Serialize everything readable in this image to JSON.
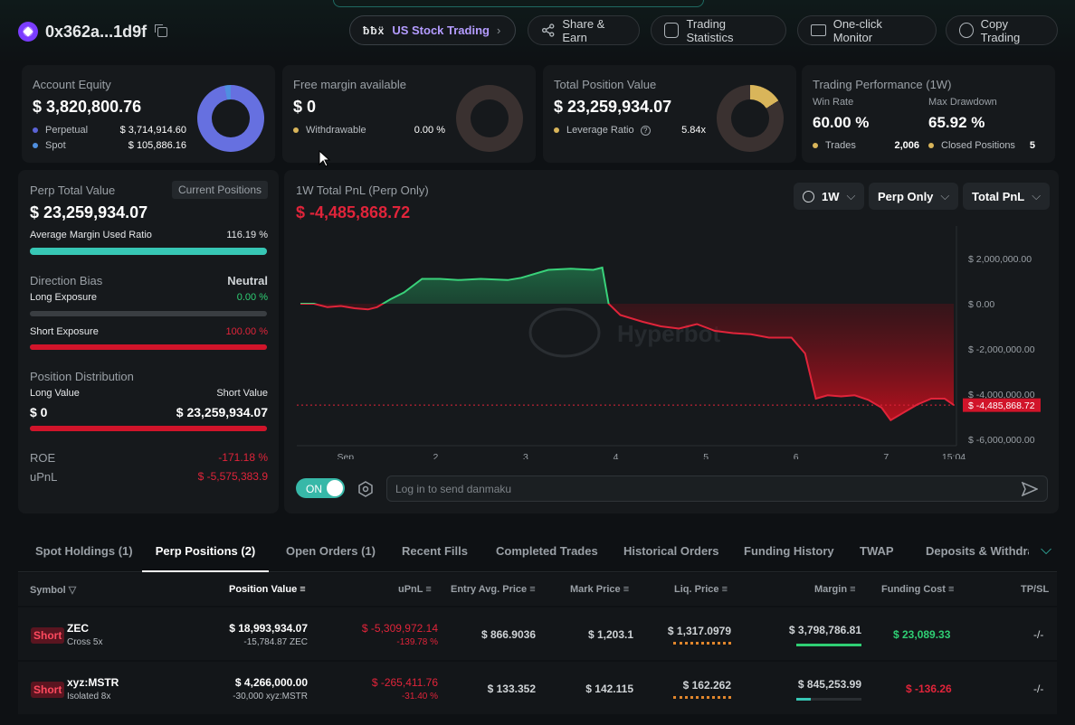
{
  "header": {
    "address": "0x362a...1d9f",
    "buttons": {
      "us_logo": "ƀƀẍ",
      "us_stock": "US Stock Trading",
      "share": "Share & Earn",
      "stats": "Trading Statistics",
      "monitor": "One-click Monitor",
      "copy": "Copy Trading"
    }
  },
  "account_equity": {
    "label": "Account Equity",
    "value": "$ 3,820,800.76",
    "perpetual_label": "Perpetual",
    "perpetual_value": "$ 3,714,914.60",
    "spot_label": "Spot",
    "spot_value": "$ 105,886.16",
    "perpetual_color": "#5b63d6",
    "spot_color": "#4f8fe0"
  },
  "free_margin": {
    "label": "Free margin available",
    "value": "$ 0",
    "withdrawable_label": "Withdrawable",
    "withdrawable_value": "0.00 %"
  },
  "total_position": {
    "label": "Total Position Value",
    "value": "$ 23,259,934.07",
    "leverage_label": "Leverage Ratio",
    "leverage_value": "5.84x"
  },
  "performance": {
    "label": "Trading Performance (1W)",
    "win_rate_label": "Win Rate",
    "win_rate_value": "60.00 %",
    "max_dd_label": "Max Drawdown",
    "max_dd_value": "65.92 %",
    "trades_label": "Trades",
    "trades_value": "2,006",
    "closed_label": "Closed Positions",
    "closed_value": "5"
  },
  "perp_panel": {
    "label": "Perp Total Value",
    "current_positions": "Current Positions",
    "value": "$ 23,259,934.07",
    "margin_ratio_label": "Average Margin Used Ratio",
    "margin_ratio_value": "116.19 %",
    "margin_ratio_fill": 1.0,
    "direction_bias_label": "Direction Bias",
    "direction_bias_value": "Neutral",
    "long_exposure_label": "Long Exposure",
    "long_exposure_value": "0.00 %",
    "long_exposure_fill": 0.0,
    "short_exposure_label": "Short Exposure",
    "short_exposure_value": "100.00 %",
    "short_exposure_fill": 1.0,
    "distribution_label": "Position Distribution",
    "long_value_label": "Long Value",
    "long_value": "$ 0",
    "short_value_label": "Short Value",
    "short_value": "$ 23,259,934.07",
    "short_value_fill": 1.0,
    "roe_label": "ROE",
    "roe_value": "-171.18 %",
    "upnl_label": "uPnL",
    "upnl_value": "$ -5,575,383.9"
  },
  "chart_panel": {
    "title": "1W Total PnL (Perp Only)",
    "value": "$ -4,485,868.72",
    "range_btn": "1W",
    "scope_btn": "Perp Only",
    "metric_btn": "Total PnL",
    "watermark": "Hyperbot",
    "danmaku_toggle": "ON",
    "danmaku_placeholder": "Log in to send danmaku"
  },
  "chart_data": {
    "type": "area",
    "ylim": [
      -6000000,
      3000000
    ],
    "y_ticks": [
      {
        "v": 2000000,
        "label": "$ 2,000,000.00"
      },
      {
        "v": 0,
        "label": "$ 0.00"
      },
      {
        "v": -2000000,
        "label": "$ -2,000,000.00"
      },
      {
        "v": -4000000,
        "label": "$ -4,000,000.00"
      },
      {
        "v": -6000000,
        "label": "$ -6,000,000.00"
      }
    ],
    "x_ticks": [
      {
        "t": 0.5,
        "label": "Sep"
      },
      {
        "t": 1.5,
        "label": "2"
      },
      {
        "t": 2.5,
        "label": "3"
      },
      {
        "t": 3.5,
        "label": "4"
      },
      {
        "t": 4.5,
        "label": "5"
      },
      {
        "t": 5.5,
        "label": "6"
      },
      {
        "t": 6.5,
        "label": "7"
      },
      {
        "t": 7.25,
        "label": "15:04"
      }
    ],
    "current_label": "$ -4,485,868.72",
    "current_value": -4485868.72,
    "points": [
      [
        0.0,
        0
      ],
      [
        0.15,
        0
      ],
      [
        0.3,
        -150000
      ],
      [
        0.45,
        -100000
      ],
      [
        0.6,
        -200000
      ],
      [
        0.75,
        -250000
      ],
      [
        0.85,
        -150000
      ],
      [
        1.0,
        200000
      ],
      [
        1.15,
        500000
      ],
      [
        1.35,
        1100000
      ],
      [
        1.55,
        1100000
      ],
      [
        1.75,
        1050000
      ],
      [
        2.0,
        1100000
      ],
      [
        2.3,
        1050000
      ],
      [
        2.45,
        1150000
      ],
      [
        2.75,
        1500000
      ],
      [
        3.0,
        1550000
      ],
      [
        3.25,
        1500000
      ],
      [
        3.35,
        1600000
      ],
      [
        3.42,
        0
      ],
      [
        3.55,
        -500000
      ],
      [
        3.8,
        -800000
      ],
      [
        4.0,
        -1000000
      ],
      [
        4.2,
        -1100000
      ],
      [
        4.4,
        -900000
      ],
      [
        4.6,
        -1200000
      ],
      [
        4.8,
        -1300000
      ],
      [
        5.0,
        -1350000
      ],
      [
        5.2,
        -1500000
      ],
      [
        5.45,
        -1500000
      ],
      [
        5.6,
        -2200000
      ],
      [
        5.72,
        -4200000
      ],
      [
        5.85,
        -4050000
      ],
      [
        6.0,
        -4100000
      ],
      [
        6.15,
        -4050000
      ],
      [
        6.3,
        -4250000
      ],
      [
        6.45,
        -4600000
      ],
      [
        6.55,
        -5150000
      ],
      [
        6.7,
        -4800000
      ],
      [
        6.85,
        -4450000
      ],
      [
        7.0,
        -4200000
      ],
      [
        7.15,
        -4200000
      ],
      [
        7.25,
        -4485868.72
      ]
    ]
  },
  "tabs": [
    "Spot Holdings (1)",
    "Perp Positions (2)",
    "Open Orders (1)",
    "Recent Fills",
    "Completed Trades",
    "Historical Orders",
    "Funding History",
    "TWAP",
    "Deposits & Withdraw"
  ],
  "table": {
    "headers": [
      "Symbol",
      "Position Value",
      "uPnL",
      "Entry Avg. Price",
      "Mark Price",
      "Liq. Price",
      "Margin",
      "Funding Cost",
      "TP/SL"
    ],
    "rows": [
      {
        "side": "Short",
        "symbol": "ZEC",
        "mode": "Cross 5x",
        "pos_value": "$ 18,993,934.07",
        "pos_qty": "-15,784.87 ZEC",
        "upnl": "$ -5,309,972.14",
        "upnl_pct": "-139.78 %",
        "entry": "$ 866.9036",
        "mark": "$ 1,203.1",
        "liq": "$ 1,317.0979",
        "margin": "$ 3,798,786.81",
        "margin_fill": 1.0,
        "funding": "$ 23,089.33",
        "tpsl": "-/-"
      },
      {
        "side": "Short",
        "symbol": "xyz:MSTR",
        "mode": "Isolated 8x",
        "pos_value": "$ 4,266,000.00",
        "pos_qty": "-30,000 xyz:MSTR",
        "upnl": "$ -265,411.76",
        "upnl_pct": "-31.40 %",
        "entry": "$ 133.352",
        "mark": "$ 142.115",
        "liq": "$ 162.262",
        "margin": "$ 845,253.99",
        "margin_fill": 0.22,
        "funding": "$ -136.26",
        "tpsl": "-/-"
      }
    ]
  }
}
